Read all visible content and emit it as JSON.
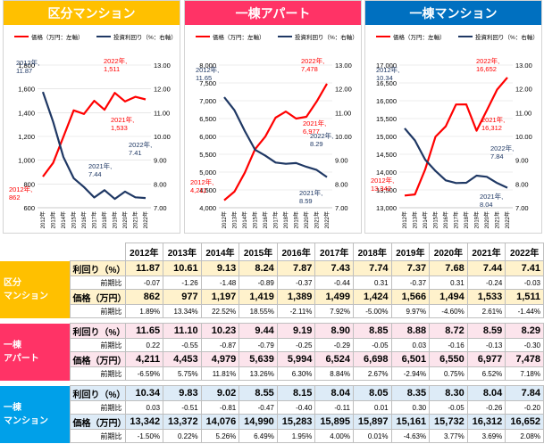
{
  "years": [
    "2012年",
    "2013年",
    "2014年",
    "2015年",
    "2016年",
    "2017年",
    "2018年",
    "2019年",
    "2020年",
    "2021年",
    "2022年"
  ],
  "legend": {
    "price": "価格（万円：左軸）",
    "yield": "投資利回り（%：右軸）"
  },
  "charts": [
    {
      "title": "区分マンション",
      "color": "#ffc000",
      "chart_data": {
        "type": "line",
        "x": [
          "2012年",
          "2013年",
          "2014年",
          "2015年",
          "2016年",
          "2017年",
          "2018年",
          "2019年",
          "2020年",
          "2021年",
          "2022年"
        ],
        "series": [
          {
            "name": "価格（万円：左軸）",
            "axis": "left",
            "color": "#ff0000",
            "values": [
              862,
              977,
              1197,
              1419,
              1389,
              1499,
              1424,
              1566,
              1494,
              1533,
              1511
            ]
          },
          {
            "name": "投資利回り（%：右軸）",
            "axis": "right",
            "color": "#1f3864",
            "values": [
              11.87,
              10.61,
              9.13,
              8.24,
              7.87,
              7.43,
              7.74,
              7.37,
              7.68,
              7.44,
              7.41
            ]
          }
        ],
        "ylim_left": [
          600,
          1800
        ],
        "yticks_left": [
          "600",
          "800",
          "1,000",
          "1,200",
          "1,400",
          "1,600",
          "1,800"
        ],
        "ylim_right": [
          7,
          13
        ],
        "yticks_right": [
          "7.00",
          "8.00",
          "9.00",
          "10.00",
          "11.00",
          "12.00",
          "13.00"
        ],
        "annotations": [
          {
            "lines": [
              "2012年,",
              "11.87"
            ],
            "color": "#1f3864"
          },
          {
            "lines": [
              "2022年,",
              "1,511"
            ],
            "color": "#ff0000"
          },
          {
            "lines": [
              "2021年,",
              "1,533"
            ],
            "color": "#ff0000"
          },
          {
            "lines": [
              "2022年,",
              "7.41"
            ],
            "color": "#1f3864"
          },
          {
            "lines": [
              "2021年,",
              "7.44"
            ],
            "color": "#1f3864"
          },
          {
            "lines": [
              "2012年,",
              "862"
            ],
            "color": "#ff0000"
          }
        ]
      }
    },
    {
      "title": "一棟アパート",
      "color": "#ff3366",
      "chart_data": {
        "type": "line",
        "x": [
          "2012年",
          "2013年",
          "2014年",
          "2015年",
          "2016年",
          "2017年",
          "2018年",
          "2019年",
          "2020年",
          "2021年",
          "2022年"
        ],
        "series": [
          {
            "name": "価格（万円：左軸）",
            "axis": "left",
            "color": "#ff0000",
            "values": [
              4211,
              4453,
              4979,
              5639,
              5994,
              6524,
              6698,
              6501,
              6550,
              6977,
              7478
            ]
          },
          {
            "name": "投資利回り（%：右軸）",
            "axis": "right",
            "color": "#1f3864",
            "values": [
              11.65,
              11.1,
              10.23,
              9.44,
              9.19,
              8.9,
              8.85,
              8.88,
              8.72,
              8.59,
              8.29
            ]
          }
        ],
        "ylim_left": [
          4000,
          8000
        ],
        "yticks_left": [
          "4,000",
          "4,500",
          "5,000",
          "5,500",
          "6,000",
          "6,500",
          "7,000",
          "7,500",
          "8,000"
        ],
        "ylim_right": [
          7,
          13
        ],
        "yticks_right": [
          "7.00",
          "8.00",
          "9.00",
          "10.00",
          "11.00",
          "12.00",
          "13.00"
        ],
        "annotations": [
          {
            "lines": [
              "2012年,",
              "11.65"
            ],
            "color": "#1f3864"
          },
          {
            "lines": [
              "2022年,",
              "7,478"
            ],
            "color": "#ff0000"
          },
          {
            "lines": [
              "2021年,",
              "6,977"
            ],
            "color": "#ff0000"
          },
          {
            "lines": [
              "2022年,",
              "8.29"
            ],
            "color": "#1f3864"
          },
          {
            "lines": [
              "2012年,",
              "4,211"
            ],
            "color": "#ff0000"
          },
          {
            "lines": [
              "2021年,",
              "8.59"
            ],
            "color": "#1f3864"
          }
        ]
      }
    },
    {
      "title": "一棟マンション",
      "color": "#0070c0",
      "chart_data": {
        "type": "line",
        "x": [
          "2012年",
          "2013年",
          "2014年",
          "2015年",
          "2016年",
          "2017年",
          "2018年",
          "2019年",
          "2020年",
          "2021年",
          "2022年"
        ],
        "series": [
          {
            "name": "価格（万円：左軸）",
            "axis": "left",
            "color": "#ff0000",
            "values": [
              13342,
              13372,
              14076,
              14990,
              15283,
              15895,
              15897,
              15161,
              15732,
              16312,
              16652
            ]
          },
          {
            "name": "投資利回り（%：右軸）",
            "axis": "right",
            "color": "#1f3864",
            "values": [
              10.34,
              9.83,
              9.02,
              8.55,
              8.15,
              8.04,
              8.05,
              8.35,
              8.3,
              8.04,
              7.84
            ]
          }
        ],
        "ylim_left": [
          13000,
          17000
        ],
        "yticks_left": [
          "13,000",
          "13,500",
          "14,000",
          "14,500",
          "15,000",
          "15,500",
          "16,000",
          "16,500",
          "17,000"
        ],
        "ylim_right": [
          7,
          13
        ],
        "yticks_right": [
          "7.00",
          "8.00",
          "9.00",
          "10.00",
          "11.00",
          "12.00",
          "13.00"
        ],
        "annotations": [
          {
            "lines": [
              "2012年,",
              "10.34"
            ],
            "color": "#1f3864"
          },
          {
            "lines": [
              "2022年,",
              "16,652"
            ],
            "color": "#ff0000"
          },
          {
            "lines": [
              "2021年,",
              "16,312"
            ],
            "color": "#ff0000"
          },
          {
            "lines": [
              "2022年,",
              "7.84"
            ],
            "color": "#1f3864"
          },
          {
            "lines": [
              "2012年,",
              "13,342"
            ],
            "color": "#ff0000"
          },
          {
            "lines": [
              "2021年,",
              "8.04"
            ],
            "color": "#1f3864"
          }
        ]
      }
    }
  ],
  "table": {
    "sections": [
      {
        "label": [
          "区分",
          "マンション"
        ],
        "color": "#ffc000",
        "band": "#fff2cc",
        "yield": [
          "11.87",
          "10.61",
          "9.13",
          "8.24",
          "7.87",
          "7.43",
          "7.74",
          "7.37",
          "7.68",
          "7.44",
          "7.41"
        ],
        "yield_chg": [
          "-0.07",
          "-1.26",
          "-1.48",
          "-0.89",
          "-0.37",
          "-0.44",
          "0.31",
          "-0.37",
          "0.31",
          "-0.24",
          "-0.03"
        ],
        "price": [
          "862",
          "977",
          "1,197",
          "1,419",
          "1,389",
          "1,499",
          "1,424",
          "1,566",
          "1,494",
          "1,533",
          "1,511"
        ],
        "price_chg": [
          "1.89%",
          "13.34%",
          "22.52%",
          "18.55%",
          "-2.11%",
          "7.92%",
          "-5.00%",
          "9.97%",
          "-4.60%",
          "2.61%",
          "-1.44%"
        ]
      },
      {
        "label": [
          "一棟",
          "アパート"
        ],
        "color": "#ff3366",
        "band": "#fce4ec",
        "yield": [
          "11.65",
          "11.10",
          "10.23",
          "9.44",
          "9.19",
          "8.90",
          "8.85",
          "8.88",
          "8.72",
          "8.59",
          "8.29"
        ],
        "yield_chg": [
          "0.22",
          "-0.55",
          "-0.87",
          "-0.79",
          "-0.25",
          "-0.29",
          "-0.05",
          "0.03",
          "-0.16",
          "-0.13",
          "-0.30"
        ],
        "price": [
          "4,211",
          "4,453",
          "4,979",
          "5,639",
          "5,994",
          "6,524",
          "6,698",
          "6,501",
          "6,550",
          "6,977",
          "7,478"
        ],
        "price_chg": [
          "-6.59%",
          "5.75%",
          "11.81%",
          "13.26%",
          "6.30%",
          "8.84%",
          "2.67%",
          "-2.94%",
          "0.75%",
          "6.52%",
          "7.18%"
        ]
      },
      {
        "label": [
          "一棟",
          "マンション"
        ],
        "color": "#00a0e9",
        "band": "#ddebf7",
        "yield": [
          "10.34",
          "9.83",
          "9.02",
          "8.55",
          "8.15",
          "8.04",
          "8.05",
          "8.35",
          "8.30",
          "8.04",
          "7.84"
        ],
        "yield_chg": [
          "0.03",
          "-0.51",
          "-0.81",
          "-0.47",
          "-0.40",
          "-0.11",
          "0.01",
          "0.30",
          "-0.05",
          "-0.26",
          "-0.20"
        ],
        "price": [
          "13,342",
          "13,372",
          "14,076",
          "14,990",
          "15,283",
          "15,895",
          "15,897",
          "15,161",
          "15,732",
          "16,312",
          "16,652"
        ],
        "price_chg": [
          "-1.50%",
          "0.22%",
          "5.26%",
          "6.49%",
          "1.95%",
          "4.00%",
          "0.01%",
          "-4.63%",
          "3.77%",
          "3.69%",
          "2.08%"
        ]
      }
    ],
    "row_labels": {
      "yield": "利回り（%）",
      "price": "価格（万円）",
      "chg": "前期比"
    }
  }
}
